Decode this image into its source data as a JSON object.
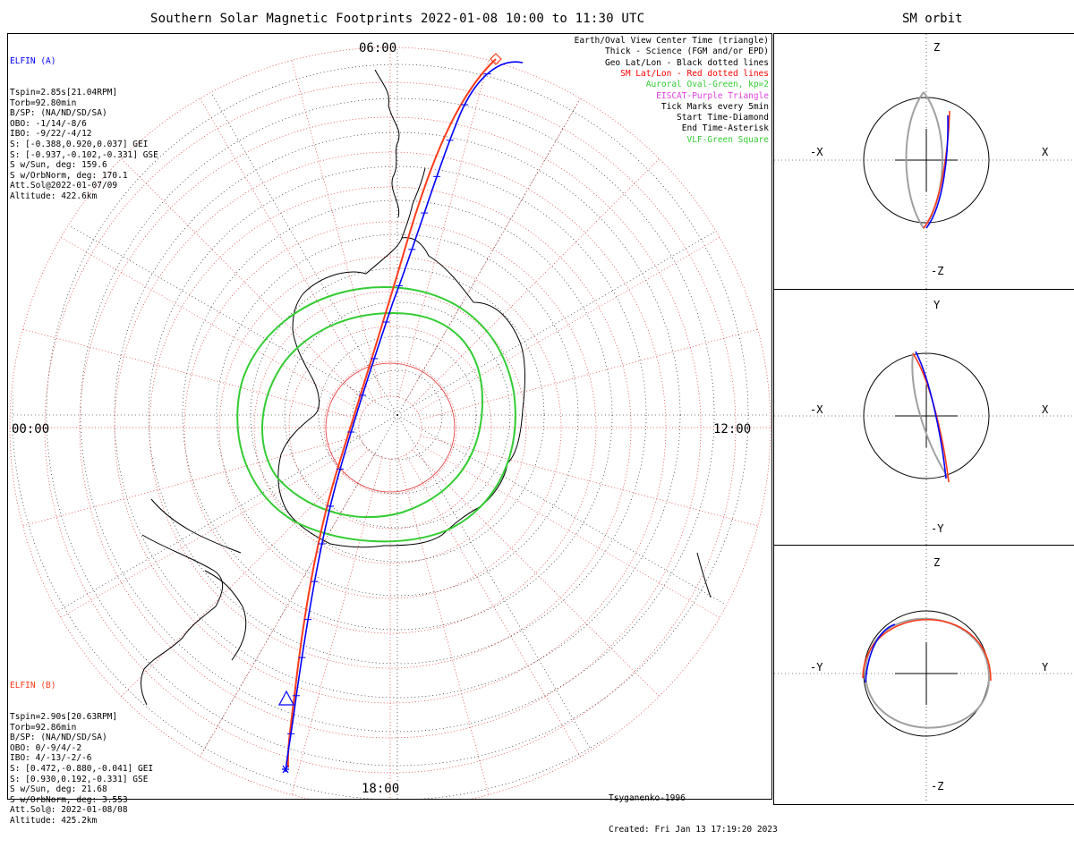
{
  "header": {
    "title": "Southern Solar Magnetic Footprints 2022-01-08 10:00 to 11:30 UTC",
    "orbit_title": "SM orbit"
  },
  "colors": {
    "elfin_a": "#0000ff",
    "elfin_b": "#ff3b1a",
    "grid_red": "#e03030",
    "auroral": "#33cc33",
    "eiscat": "#e040e0",
    "vlf": "#33cc33",
    "orbit_grey": "#a0a0a0"
  },
  "map": {
    "time_labels": {
      "top": "06:00",
      "left": "00:00",
      "right": "12:00",
      "bottom": "18:00"
    }
  },
  "legend": [
    {
      "text": "Earth/Oval View Center Time (triangle)",
      "color": "#000000"
    },
    {
      "text": "Thick - Science (FGM and/or EPD)",
      "color": "#000000"
    },
    {
      "text": "Geo Lat/Lon - Black dotted lines",
      "color": "#000000"
    },
    {
      "text": "SM Lat/Lon - Red dotted lines",
      "color": "#ff0000"
    },
    {
      "text": "Auroral Oval-Green, kp=2",
      "color": "#33cc33"
    },
    {
      "text": "EISCAT-Purple Triangle",
      "color": "#e040e0"
    },
    {
      "text": "Tick Marks every 5min",
      "color": "#000000"
    },
    {
      "text": "Start Time-Diamond",
      "color": "#000000"
    },
    {
      "text": "End Time-Asterisk",
      "color": "#000000"
    },
    {
      "text": "VLF-Green Square",
      "color": "#33cc33"
    }
  ],
  "elfin_a": {
    "name": "ELFIN (A)",
    "lines": [
      "Tspin=2.85s[21.04RPM]",
      "Torb=92.80min",
      "B/SP: (NA/ND/SD/SA)",
      "OBO: -1/14/-8/6",
      "IBO: -9/22/-4/12",
      "S: [-0.388,0.920,0.037] GEI",
      "S: [-0.937,-0.102,-0.331] GSE",
      "S w/Sun, deg: 159.6",
      "S w/OrbNorm, deg: 170.1",
      "Att.Sol@2022-01-07/09",
      "Altitude: 422.6km"
    ]
  },
  "elfin_b": {
    "name": "ELFIN (B)",
    "lines": [
      "Tspin=2.90s[20.63RPM]",
      "Torb=92.86min",
      "B/SP: (NA/ND/SD/SA)",
      "OBO: 0/-9/4/-2",
      "IBO: 4/-13/-2/-6",
      "S: [0.472,-0.880,-0.041] GEI",
      "S: [0.930,0.192,-0.331] GSE",
      "S w/Sun, deg: 21.68",
      "S w/OrbNorm, deg: 3.553",
      "Att.Sol@: 2022-01-08/08",
      "Altitude: 425.2km"
    ]
  },
  "footer": {
    "model": "Tsyganenko-1996",
    "created": "Created: Fri Jan 13 17:19:20 2023"
  },
  "orbit_panels": [
    {
      "top": "Z",
      "bottom": "-Z",
      "left": "-X",
      "right": "X"
    },
    {
      "top": "Y",
      "bottom": "-Y",
      "left": "-X",
      "right": "X"
    },
    {
      "top": "Z",
      "bottom": "-Z",
      "left": "-Y",
      "right": "Y"
    }
  ]
}
